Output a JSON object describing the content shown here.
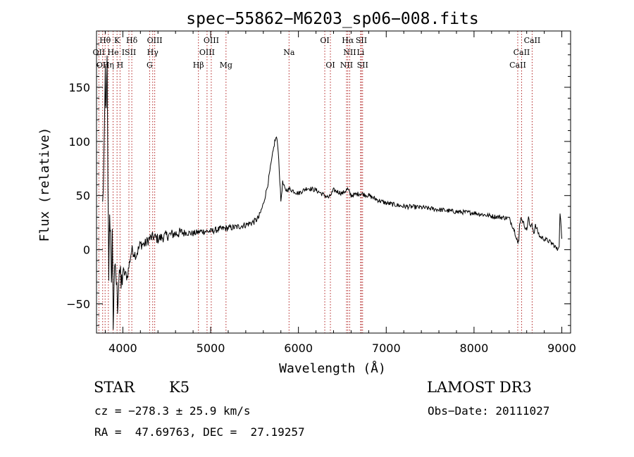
{
  "chart_data": {
    "type": "line",
    "title": "spec−55862−M6203_sp06−008.fits",
    "xlabel": "Wavelength (Å)",
    "ylabel": "Flux (relative)",
    "xlim": [
      3700,
      9100
    ],
    "ylim": [
      -77,
      202
    ],
    "x_ticks": [
      4000,
      5000,
      6000,
      7000,
      8000,
      9000
    ],
    "y_ticks": [
      -50,
      0,
      50,
      100,
      150
    ],
    "x_tick_labels": [
      "4000",
      "5000",
      "6000",
      "7000",
      "8000",
      "9000"
    ],
    "y_tick_labels": [
      "−50",
      "0",
      "50",
      "100",
      "150"
    ],
    "grid": false,
    "series": [
      {
        "name": "flux",
        "color": "#000000",
        "x": [
          3770,
          3790,
          3800,
          3810,
          3820,
          3830,
          3840,
          3850,
          3860,
          3870,
          3880,
          3890,
          3900,
          3920,
          3940,
          3960,
          3980,
          4000,
          4050,
          4100,
          4150,
          4200,
          4250,
          4300,
          4350,
          4400,
          4500,
          4600,
          4700,
          4800,
          4900,
          5000,
          5100,
          5200,
          5300,
          5400,
          5500,
          5550,
          5600,
          5650,
          5700,
          5730,
          5750,
          5770,
          5800,
          5820,
          5850,
          5900,
          6000,
          6100,
          6200,
          6300,
          6350,
          6400,
          6500,
          6560,
          6600,
          6700,
          6800,
          6900,
          7000,
          7200,
          7400,
          7600,
          7800,
          8000,
          8200,
          8400,
          8450,
          8490,
          8500,
          8510,
          8520,
          8540,
          8560,
          8600,
          8620,
          8640,
          8660,
          8680,
          8700,
          8750,
          8800,
          8850,
          8900,
          8950,
          8970,
          8980,
          9000
        ],
        "y": [
          40,
          100,
          165,
          120,
          170,
          60,
          -20,
          40,
          10,
          -40,
          20,
          -70,
          -30,
          -20,
          -50,
          -15,
          -35,
          -20,
          -25,
          0,
          -5,
          5,
          5,
          10,
          12,
          10,
          13,
          15,
          16,
          15,
          17,
          17,
          19,
          20,
          21,
          23,
          26,
          30,
          42,
          60,
          85,
          100,
          104,
          92,
          45,
          62,
          55,
          56,
          52,
          57,
          55,
          50,
          48,
          55,
          52,
          56,
          50,
          52,
          50,
          46,
          43,
          40,
          39,
          37,
          35,
          34,
          31,
          29,
          20,
          10,
          5,
          8,
          25,
          30,
          25,
          18,
          30,
          20,
          25,
          15,
          22,
          12,
          10,
          8,
          5,
          0,
          5,
          35,
          10
        ]
      }
    ],
    "line_markers": [
      {
        "label": "Hθ",
        "x": 3798,
        "row": 0
      },
      {
        "label": "K",
        "x": 3934,
        "row": 0
      },
      {
        "label": "Hδ",
        "x": 4102,
        "row": 0
      },
      {
        "label": "OIII",
        "x": 4363,
        "row": 0
      },
      {
        "label": "OIII",
        "x": 5007,
        "row": 0
      },
      {
        "label": "OI",
        "x": 6300,
        "row": 0
      },
      {
        "label": "Hα",
        "x": 6563,
        "row": 0
      },
      {
        "label": "SII",
        "x": 6717,
        "row": 0
      },
      {
        "label": "CaII",
        "x": 8662,
        "row": 0
      },
      {
        "label": "OII",
        "x": 3727,
        "row": 1
      },
      {
        "label": "He",
        "x": 3889,
        "row": 1
      },
      {
        "label": "ISII",
        "x": 4069,
        "row": 1
      },
      {
        "label": "Hγ",
        "x": 4340,
        "row": 1
      },
      {
        "label": "OIII",
        "x": 4959,
        "row": 1
      },
      {
        "label": "Na",
        "x": 5893,
        "row": 1
      },
      {
        "label": "NII",
        "x": 6584,
        "row": 1
      },
      {
        "label": "Li",
        "x": 6708,
        "row": 1
      },
      {
        "label": "CaII",
        "x": 8542,
        "row": 1
      },
      {
        "label": "OII",
        "x": 3770,
        "row": 2
      },
      {
        "label": "Hη",
        "x": 3835,
        "row": 2
      },
      {
        "label": "H",
        "x": 3968,
        "row": 2
      },
      {
        "label": "G",
        "x": 4305,
        "row": 2
      },
      {
        "label": "Hβ",
        "x": 4861,
        "row": 2
      },
      {
        "label": "Mg",
        "x": 5175,
        "row": 2
      },
      {
        "label": "OI",
        "x": 6364,
        "row": 2
      },
      {
        "label": "NII",
        "x": 6548,
        "row": 2
      },
      {
        "label": "SII",
        "x": 6731,
        "row": 2
      },
      {
        "label": "CaII",
        "x": 8498,
        "row": 2
      }
    ],
    "marker_line_color": "#b22222"
  },
  "info": {
    "object_class": "STAR",
    "subclass": "K5",
    "survey": "LAMOST DR3",
    "redshift_line": "cz = −278.3 ± 25.9 km/s",
    "obs_date_line": "Obs−Date: 20111027",
    "coords_line": "RA =  47.69763, DEC =  27.19257"
  }
}
